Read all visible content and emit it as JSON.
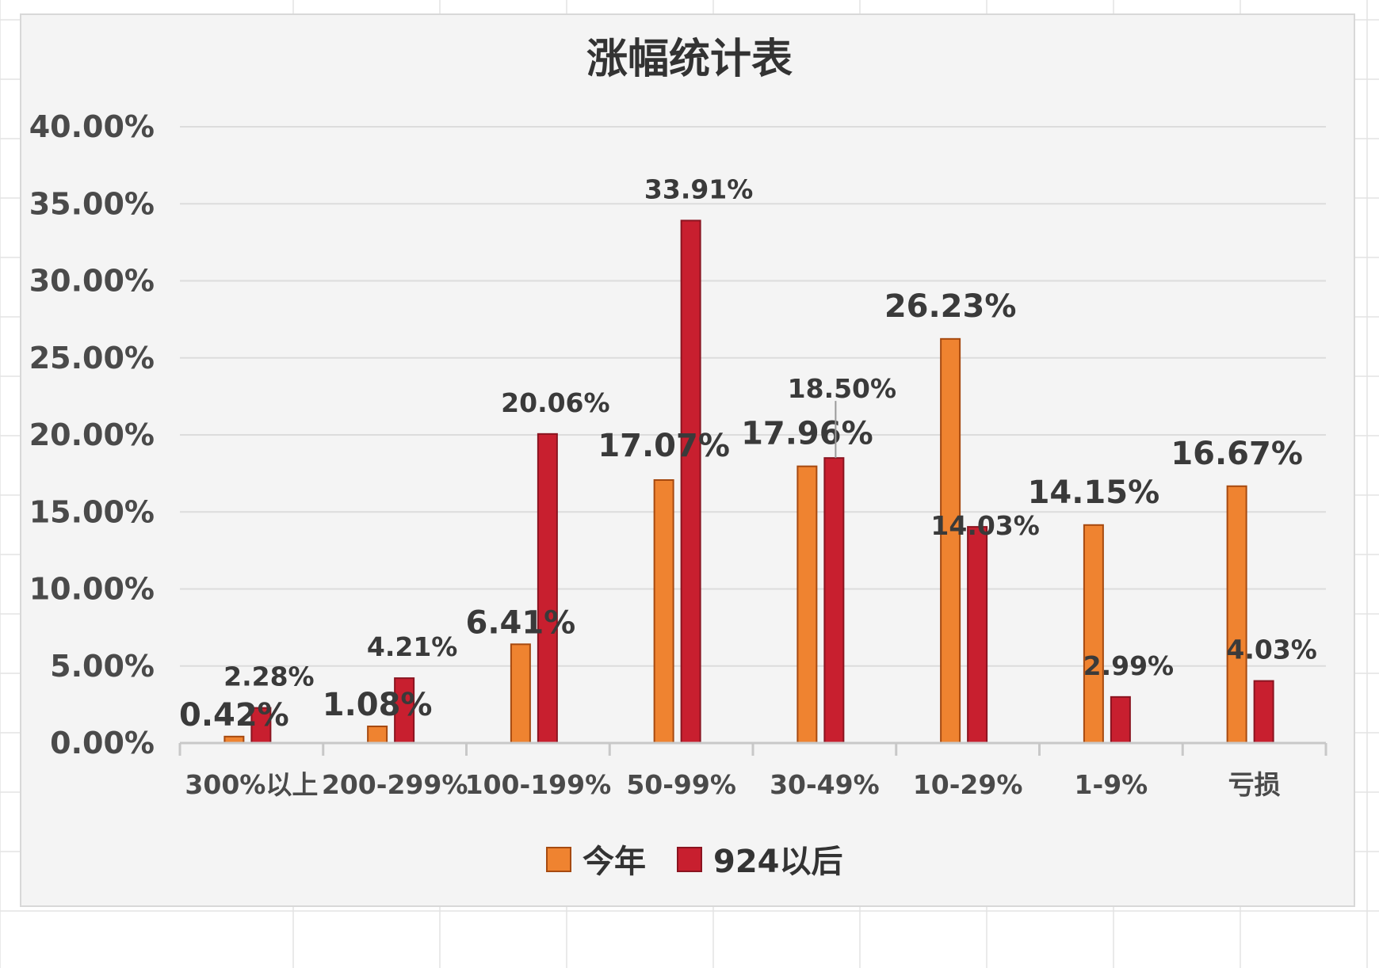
{
  "chart_data": {
    "type": "bar",
    "title": "涨幅统计表",
    "categories": [
      "300%以上",
      "200-299%",
      "100-199%",
      "50-99%",
      "30-49%",
      "10-29%",
      "1-9%",
      "亏损"
    ],
    "series": [
      {
        "name": "今年",
        "color": "#ef8330",
        "values": [
          0.42,
          1.08,
          6.41,
          17.07,
          17.96,
          26.23,
          14.15,
          16.67
        ],
        "labels": [
          "0.42%",
          "1.08%",
          "6.41%",
          "17.07%",
          "17.96%",
          "26.23%",
          "14.15%",
          "16.67%"
        ]
      },
      {
        "name": "924以后",
        "color": "#c81f2f",
        "values": [
          2.28,
          4.21,
          20.06,
          33.91,
          18.5,
          14.03,
          2.99,
          4.03
        ],
        "labels": [
          "2.28%",
          "4.21%",
          "20.06%",
          "33.91%",
          "18.50%",
          "14.03%",
          "2.99%",
          "4.03%"
        ]
      }
    ],
    "yticks": [
      "0.00%",
      "5.00%",
      "10.00%",
      "15.00%",
      "20.00%",
      "25.00%",
      "30.00%",
      "35.00%",
      "40.00%"
    ],
    "ylim": [
      0,
      40
    ],
    "xlabel": "",
    "ylabel": "",
    "grid": true,
    "legend": "bottom"
  }
}
